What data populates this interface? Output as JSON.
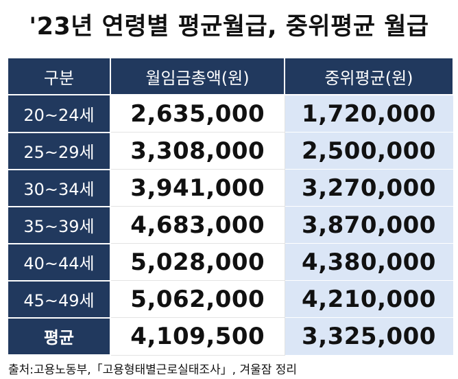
{
  "title": "'23년 연령별 평균월급, 중위평균 월급",
  "table": {
    "headers": [
      "구분",
      "월임금총액(원)",
      "중위평균(원)"
    ],
    "rows": [
      {
        "label": "20~24세",
        "total": "2,635,000",
        "median": "1,720,000"
      },
      {
        "label": "25~29세",
        "total": "3,308,000",
        "median": "2,500,000"
      },
      {
        "label": "30~34세",
        "total": "3,941,000",
        "median": "3,270,000"
      },
      {
        "label": "35~39세",
        "total": "4,683,000",
        "median": "3,870,000"
      },
      {
        "label": "40~44세",
        "total": "5,028,000",
        "median": "4,380,000"
      },
      {
        "label": "45~49세",
        "total": "5,062,000",
        "median": "4,210,000"
      },
      {
        "label": "평균",
        "total": "4,109,500",
        "median": "3,325,000"
      }
    ]
  },
  "source": "출처:고용노동부,「고용형태별근로실태조사」, 겨울잠 정리",
  "colors": {
    "header_bg": "#21395e",
    "median_bg": "#dbe6f6",
    "text": "#111111"
  }
}
